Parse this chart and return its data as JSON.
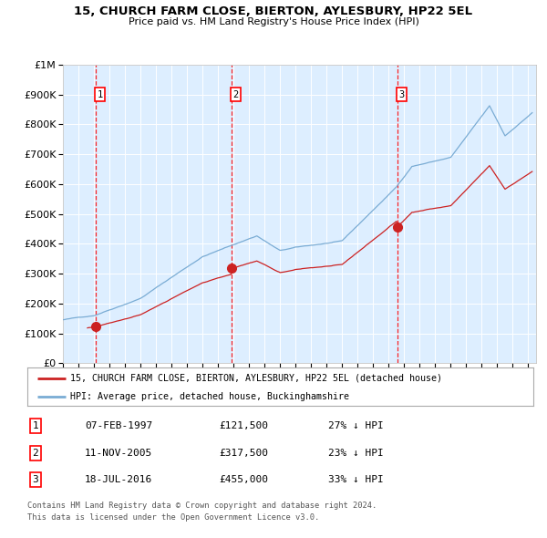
{
  "title_line1": "15, CHURCH FARM CLOSE, BIERTON, AYLESBURY, HP22 5EL",
  "title_line2": "Price paid vs. HM Land Registry's House Price Index (HPI)",
  "sale_dates_num": [
    1997.09,
    2005.86,
    2016.54
  ],
  "sale_prices": [
    121500,
    317500,
    455000
  ],
  "sale_labels": [
    "1",
    "2",
    "3"
  ],
  "sale_label_dates": [
    "07-FEB-1997",
    "11-NOV-2005",
    "18-JUL-2016"
  ],
  "sale_label_prices": [
    "£121,500",
    "£317,500",
    "£455,000"
  ],
  "sale_label_hpi": [
    "27% ↓ HPI",
    "23% ↓ HPI",
    "33% ↓ HPI"
  ],
  "hpi_color": "#7aacd4",
  "price_color": "#cc2222",
  "background_color": "#ddeeff",
  "legend_label_red": "15, CHURCH FARM CLOSE, BIERTON, AYLESBURY, HP22 5EL (detached house)",
  "legend_label_blue": "HPI: Average price, detached house, Buckinghamshire",
  "footer_line1": "Contains HM Land Registry data © Crown copyright and database right 2024.",
  "footer_line2": "This data is licensed under the Open Government Licence v3.0.",
  "ylim_max": 1000000,
  "xlim_min": 1995,
  "xlim_max": 2025.5
}
